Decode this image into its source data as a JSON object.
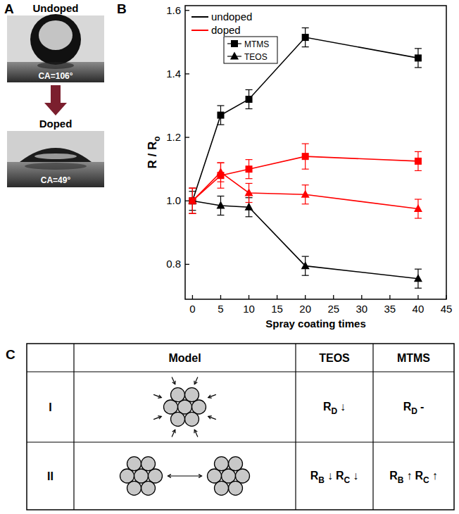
{
  "panel_letters": [
    "A",
    "B",
    "C"
  ],
  "panel_a": {
    "top_label": "Undoped",
    "top_ca": "CA=106°",
    "bottom_label": "Doped",
    "bottom_ca": "CA=49°"
  },
  "chart_data": {
    "type": "line",
    "x": [
      0,
      5,
      10,
      20,
      40
    ],
    "xlabel": "Spray coating times",
    "ylabel": "R / R",
    "ylabel_sub": "o",
    "xlim": [
      -1.3,
      45
    ],
    "xticks": [
      0,
      5,
      10,
      15,
      20,
      25,
      30,
      35,
      40,
      45
    ],
    "ylim": [
      0.69,
      1.615
    ],
    "yticks": [
      0.8,
      {
        "value": 1,
        "label": "1.0"
      },
      1.2,
      1.4,
      1.6
    ],
    "series": [
      {
        "color": "#000000",
        "marker": "square",
        "values": [
          1.0,
          1.27,
          1.32,
          1.515,
          1.45
        ],
        "errors": [
          0.04,
          0.03,
          0.03,
          0.03,
          0.03
        ]
      },
      {
        "color": "#ff0000",
        "marker": "square",
        "values": [
          1.0,
          1.08,
          1.1,
          1.14,
          1.125
        ],
        "errors": [
          0.04,
          0.04,
          0.03,
          0.04,
          0.03
        ]
      },
      {
        "color": "#000000",
        "marker": "triangle",
        "values": [
          1.0,
          0.985,
          0.98,
          0.795,
          0.755
        ],
        "errors": [
          0.03,
          0.03,
          0.03,
          0.03,
          0.03
        ]
      },
      {
        "color": "#ff0000",
        "marker": "triangle",
        "values": [
          1.0,
          1.09,
          1.025,
          1.02,
          0.975
        ],
        "errors": [
          0.04,
          0.03,
          0.03,
          0.03,
          0.03
        ]
      }
    ],
    "color_legend": [
      {
        "label": "undoped",
        "color": "#000000"
      },
      {
        "label": "doped",
        "color": "#ff0000"
      }
    ],
    "marker_legend": [
      {
        "label": "MTMS",
        "marker": "square"
      },
      {
        "label": "TEOS",
        "marker": "triangle"
      }
    ]
  },
  "panel_c": {
    "headers": [
      "Model",
      "TEOS",
      "MTMS"
    ],
    "rows": [
      {
        "label": "I",
        "teos": [
          {
            "base": "R",
            "sub": "D",
            "suffix": "↓"
          }
        ],
        "mtms": [
          {
            "base": "R",
            "sub": "D",
            "suffix": "-"
          }
        ]
      },
      {
        "label": "II",
        "teos": [
          {
            "base": "R",
            "sub": "B",
            "suffix": "↓"
          },
          {
            "base": "R",
            "sub": "C",
            "suffix": "↓"
          }
        ],
        "mtms": [
          {
            "base": "R",
            "sub": "B",
            "suffix": "↑"
          },
          {
            "base": "R",
            "sub": "C",
            "suffix": "↑"
          }
        ]
      }
    ]
  }
}
